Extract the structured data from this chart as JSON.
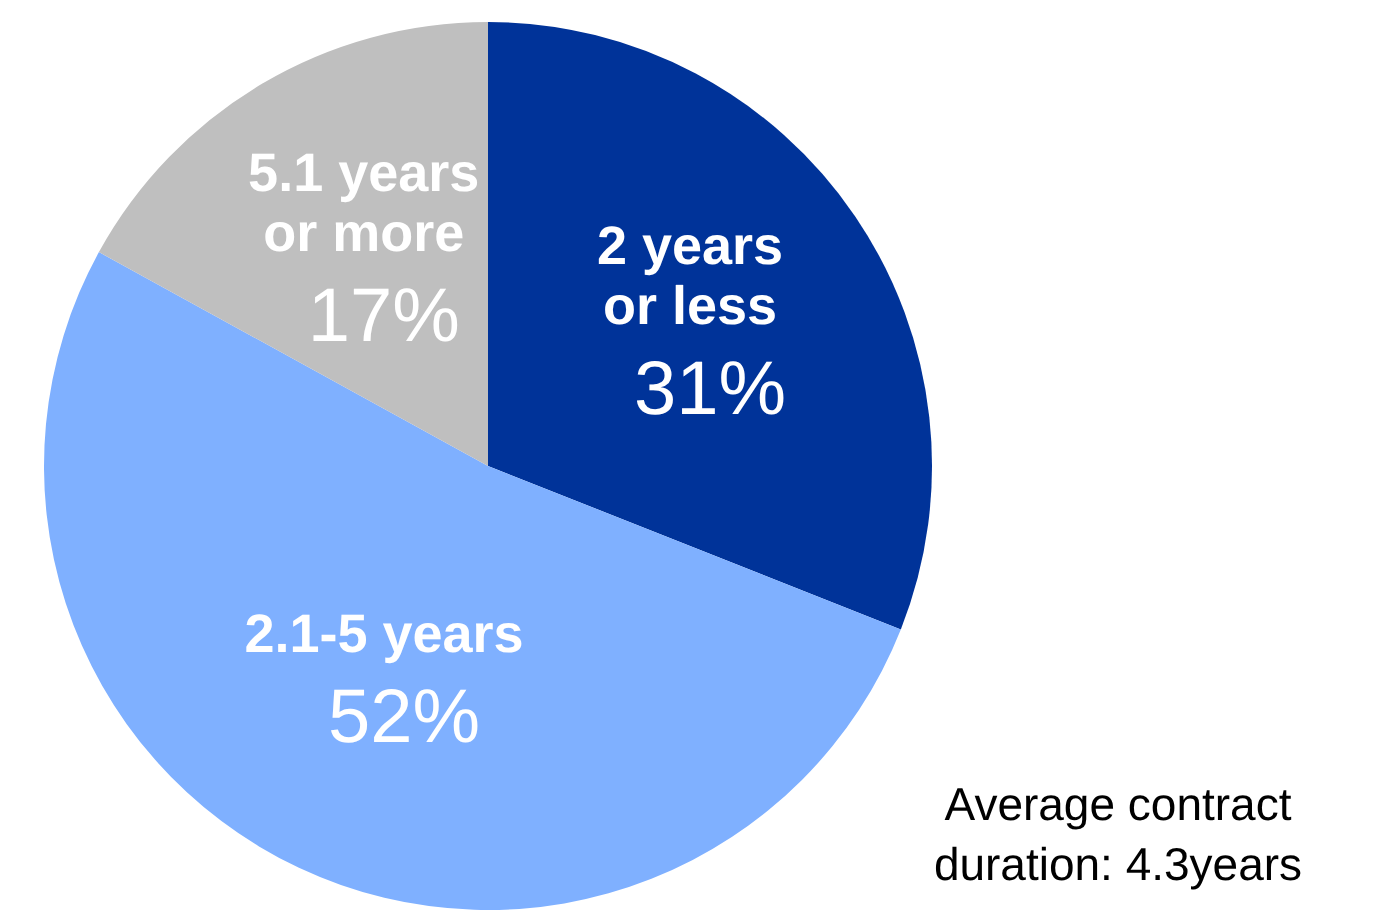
{
  "chart_data": {
    "type": "pie",
    "categories": [
      "2 years or less",
      "2.1-5 years",
      "5.1 years or more"
    ],
    "values": [
      31,
      52,
      17
    ],
    "colors": [
      "#003399",
      "#7fb0ff",
      "#bfbfbf"
    ],
    "value_labels": [
      "31%",
      "52%",
      "17%"
    ],
    "annotations": [
      "Average contract duration: 4.3years"
    ]
  }
}
